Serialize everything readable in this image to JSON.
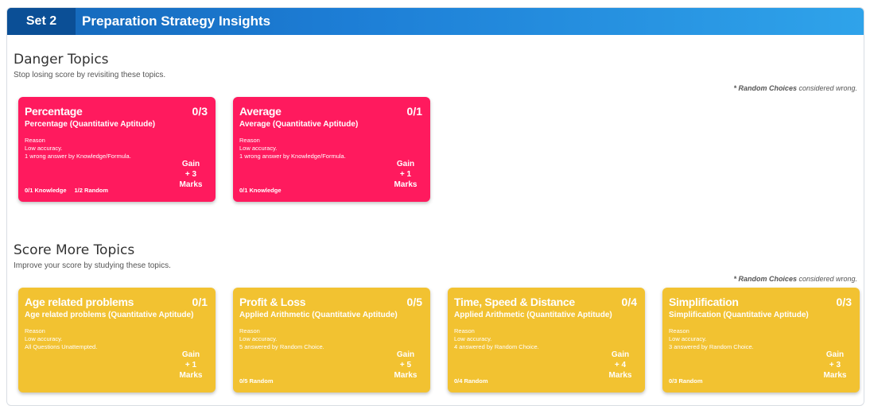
{
  "header": {
    "set_label": "Set 2",
    "title": "Preparation Strategy Insights"
  },
  "danger": {
    "title": "Danger Topics",
    "subtitle": "Stop losing score by revisiting these topics.",
    "note_bold": "* Random Choices",
    "note_rest": " considered wrong.",
    "cards": [
      {
        "title": "Percentage",
        "score": "0/3",
        "subtitle": "Percentage (Quantitative Aptitude)",
        "reason_label": "Reason",
        "reason_1": "Low accuracy.",
        "reason_2": "1 wrong answer by Knowledge/Formula.",
        "gain_label": "Gain",
        "gain_value": "+ 3",
        "gain_unit": "Marks",
        "foot_1": "0/1 Knowledge",
        "foot_2": "1/2 Random"
      },
      {
        "title": "Average",
        "score": "0/1",
        "subtitle": "Average (Quantitative Aptitude)",
        "reason_label": "Reason",
        "reason_1": "Low accuracy.",
        "reason_2": "1 wrong answer by Knowledge/Formula.",
        "gain_label": "Gain",
        "gain_value": "+ 1",
        "gain_unit": "Marks",
        "foot_1": "0/1 Knowledge",
        "foot_2": ""
      }
    ]
  },
  "score_more": {
    "title": "Score More Topics",
    "subtitle": "Improve your score by studying these topics.",
    "note_bold": "* Random Choices",
    "note_rest": " considered wrong.",
    "cards": [
      {
        "title": "Age related problems",
        "score": "0/1",
        "subtitle": "Age related problems (Quantitative Aptitude)",
        "reason_label": "Reason",
        "reason_1": "Low accuracy.",
        "reason_2": "All Questions Unattempted.",
        "gain_label": "Gain",
        "gain_value": "+ 1",
        "gain_unit": "Marks",
        "foot_1": "",
        "foot_2": ""
      },
      {
        "title": "Profit & Loss",
        "score": "0/5",
        "subtitle": "Applied Arithmetic (Quantitative Aptitude)",
        "reason_label": "Reason",
        "reason_1": "Low accuracy.",
        "reason_2": "5 answered by Random Choice.",
        "gain_label": "Gain",
        "gain_value": "+ 5",
        "gain_unit": "Marks",
        "foot_1": "0/5 Random",
        "foot_2": ""
      },
      {
        "title": "Time, Speed & Distance",
        "score": "0/4",
        "subtitle": "Applied Arithmetic (Quantitative Aptitude)",
        "reason_label": "Reason",
        "reason_1": "Low accuracy.",
        "reason_2": "4 answered by Random Choice.",
        "gain_label": "Gain",
        "gain_value": "+ 4",
        "gain_unit": "Marks",
        "foot_1": "0/4 Random",
        "foot_2": ""
      },
      {
        "title": "Simplification",
        "score": "0/3",
        "subtitle": "Simplification (Quantitative Aptitude)",
        "reason_label": "Reason",
        "reason_1": "Low accuracy.",
        "reason_2": "3 answered by Random Choice.",
        "gain_label": "Gain",
        "gain_value": "+ 3",
        "gain_unit": "Marks",
        "foot_1": "0/3 Random",
        "foot_2": ""
      }
    ]
  },
  "colors": {
    "danger": "#ff1a5e",
    "score_more": "#f2c231",
    "header_start": "#1466b8",
    "header_end": "#2fa3ea"
  }
}
